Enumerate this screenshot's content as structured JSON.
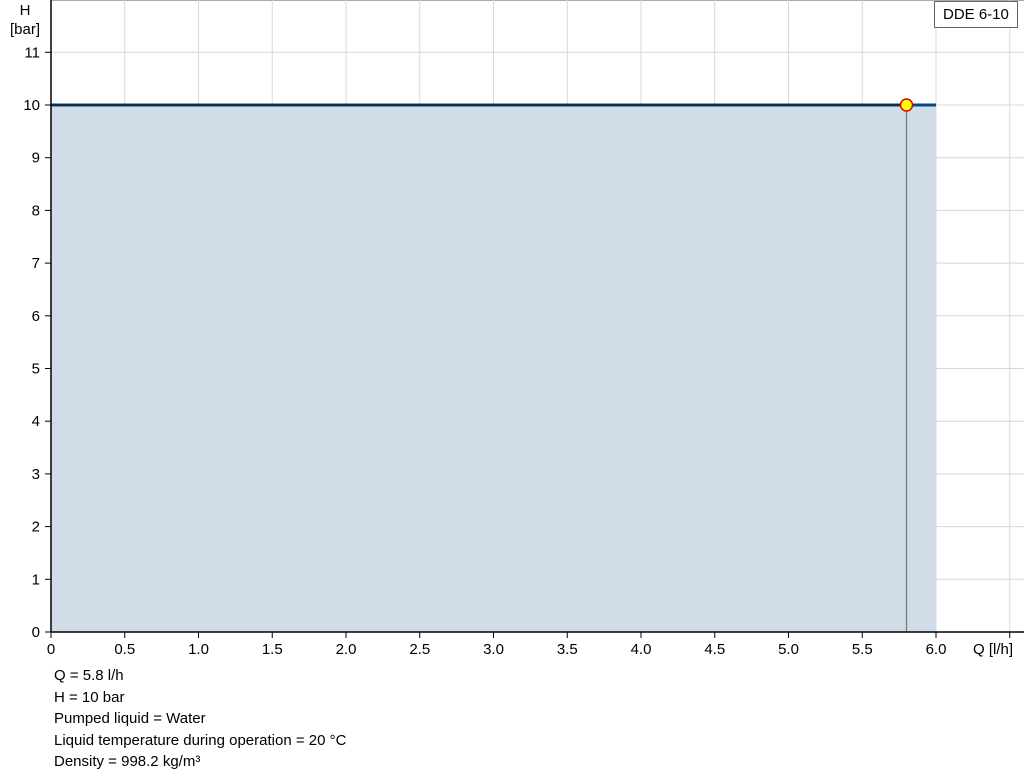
{
  "chart_data": {
    "type": "area",
    "title": "",
    "xlabel": "Q [l/h]",
    "ylabel_line1": "H",
    "ylabel_line2": "[bar]",
    "xlim": [
      0,
      6.59
    ],
    "ylim": [
      0,
      12
    ],
    "grid": true,
    "xticks": [
      0,
      0.5,
      1.0,
      1.5,
      2.0,
      2.5,
      3.0,
      3.5,
      4.0,
      4.5,
      5.0,
      5.5,
      6.0,
      6.5
    ],
    "xtick_labels": [
      "0",
      "0.5",
      "1.0",
      "1.5",
      "2.0",
      "2.5",
      "3.0",
      "3.5",
      "4.0",
      "4.5",
      "5.0",
      "5.5",
      "6.0",
      ""
    ],
    "yticks": [
      0,
      1,
      2,
      3,
      4,
      5,
      6,
      7,
      8,
      9,
      10,
      11
    ],
    "ytick_labels": [
      "0",
      "1",
      "2",
      "3",
      "4",
      "5",
      "6",
      "7",
      "8",
      "9",
      "10",
      "11"
    ],
    "series": [
      {
        "name": "DDE 6-10",
        "x": [
          0,
          6.0
        ],
        "y": [
          10,
          10
        ],
        "color": "#004b87",
        "fill": "#d0dce8"
      }
    ],
    "operating_point": {
      "x": 5.8,
      "y": 10,
      "fill": "#ffff00",
      "stroke": "#e00000"
    },
    "legend": {
      "label": "DDE 6-10",
      "placement": "top-right"
    }
  },
  "info": [
    "Q = 5.8 l/h",
    "H = 10 bar",
    "Pumped liquid = Water",
    "Liquid temperature during operation = 20 °C",
    "Density = 998.2 kg/m³"
  ]
}
